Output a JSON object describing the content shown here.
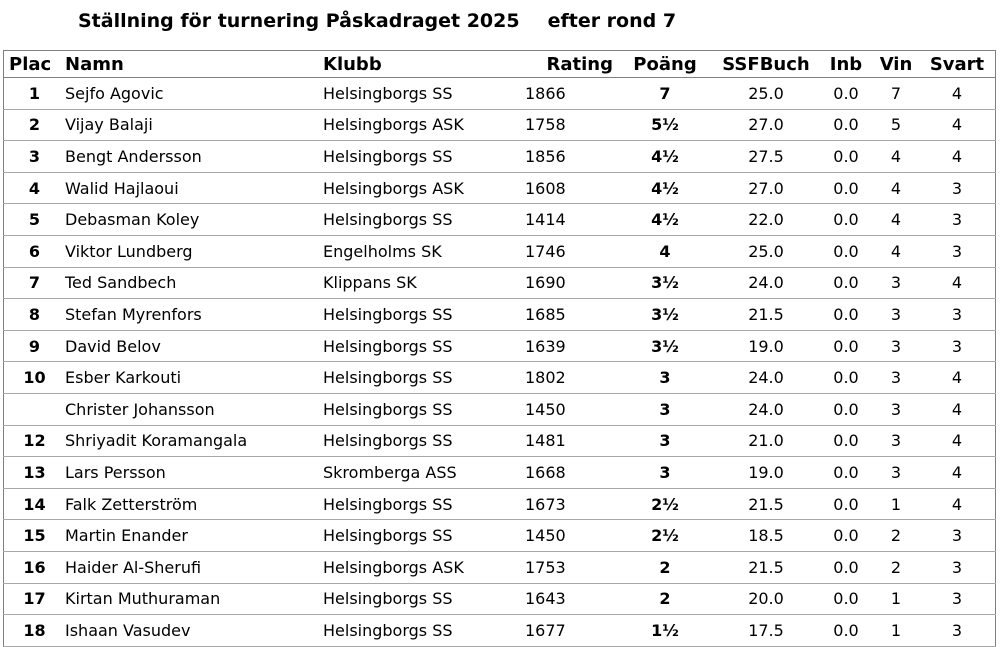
{
  "header": {
    "title": "Ställning för turnering Påskadraget 2025",
    "subtitle": "efter rond 7"
  },
  "table": {
    "columns": [
      "Plac",
      "Namn",
      "Klubb",
      "Rating",
      "Poäng",
      "SSFBuch",
      "Inb",
      "Vin",
      "Svart"
    ],
    "rows": [
      [
        "1",
        "Sejfo Agovic",
        "Helsingborgs SS",
        "1866",
        "7",
        "25.0",
        "0.0",
        "7",
        "4"
      ],
      [
        "2",
        "Vijay Balaji",
        "Helsingborgs ASK",
        "1758",
        "5½",
        "27.0",
        "0.0",
        "5",
        "4"
      ],
      [
        "3",
        "Bengt Andersson",
        "Helsingborgs SS",
        "1856",
        "4½",
        "27.5",
        "0.0",
        "4",
        "4"
      ],
      [
        "4",
        "Walid Hajlaoui",
        "Helsingborgs ASK",
        "1608",
        "4½",
        "27.0",
        "0.0",
        "4",
        "3"
      ],
      [
        "5",
        "Debasman Koley",
        "Helsingborgs SS",
        "1414",
        "4½",
        "22.0",
        "0.0",
        "4",
        "3"
      ],
      [
        "6",
        "Viktor Lundberg",
        "Engelholms SK",
        "1746",
        "4",
        "25.0",
        "0.0",
        "4",
        "3"
      ],
      [
        "7",
        "Ted Sandbech",
        "Klippans SK",
        "1690",
        "3½",
        "24.0",
        "0.0",
        "3",
        "4"
      ],
      [
        "8",
        "Stefan Myrenfors",
        "Helsingborgs SS",
        "1685",
        "3½",
        "21.5",
        "0.0",
        "3",
        "3"
      ],
      [
        "9",
        "David Belov",
        "Helsingborgs SS",
        "1639",
        "3½",
        "19.0",
        "0.0",
        "3",
        "3"
      ],
      [
        "10",
        "Esber Karkouti",
        "Helsingborgs SS",
        "1802",
        "3",
        "24.0",
        "0.0",
        "3",
        "4"
      ],
      [
        "",
        "Christer Johansson",
        "Helsingborgs SS",
        "1450",
        "3",
        "24.0",
        "0.0",
        "3",
        "4"
      ],
      [
        "12",
        "Shriyadit Koramangala",
        "Helsingborgs SS",
        "1481",
        "3",
        "21.0",
        "0.0",
        "3",
        "4"
      ],
      [
        "13",
        "Lars Persson",
        "Skromberga ASS",
        "1668",
        "3",
        "19.0",
        "0.0",
        "3",
        "4"
      ],
      [
        "14",
        "Falk Zetterström",
        "Helsingborgs SS",
        "1673",
        "2½",
        "21.5",
        "0.0",
        "1",
        "4"
      ],
      [
        "15",
        "Martin Enander",
        "Helsingborgs SS",
        "1450",
        "2½",
        "18.5",
        "0.0",
        "2",
        "3"
      ],
      [
        "16",
        "Haider Al-Sherufi",
        "Helsingborgs ASK",
        "1753",
        "2",
        "21.5",
        "0.0",
        "2",
        "3"
      ],
      [
        "17",
        "Kirtan Muthuraman",
        "Helsingborgs SS",
        "1643",
        "2",
        "20.0",
        "0.0",
        "1",
        "3"
      ],
      [
        "18",
        "Ishaan Vasudev",
        "Helsingborgs SS",
        "1677",
        "1½",
        "17.5",
        "0.0",
        "1",
        "3"
      ]
    ]
  }
}
